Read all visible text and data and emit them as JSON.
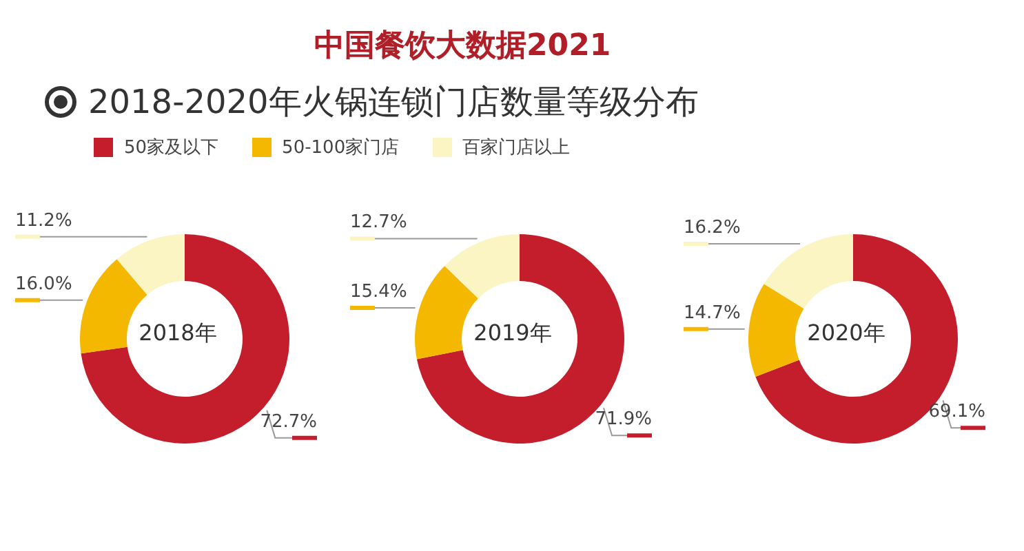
{
  "chart_data": {
    "type": "donut",
    "title": "中国餐饮大数据2021",
    "subtitle": "2018-2020年火锅连锁门店数量等级分布",
    "legend": "top left",
    "categories": [
      "50家及以下",
      "50-100家门店",
      "百家门店以上"
    ],
    "colors": [
      "#c41e2c",
      "#f5b800",
      "#fbf5c4"
    ],
    "series": [
      {
        "name": "2018年",
        "values": [
          72.7,
          16.0,
          11.2
        ],
        "value_labels": [
          "72.7%",
          "16.0%",
          "11.2%"
        ]
      },
      {
        "name": "2019年",
        "values": [
          71.9,
          15.4,
          12.7
        ],
        "value_labels": [
          "71.9%",
          "15.4%",
          "12.7%"
        ]
      },
      {
        "name": "2020年",
        "values": [
          69.1,
          14.7,
          16.2
        ],
        "value_labels": [
          "69.1%",
          "14.7%",
          "16.2%"
        ]
      }
    ]
  }
}
